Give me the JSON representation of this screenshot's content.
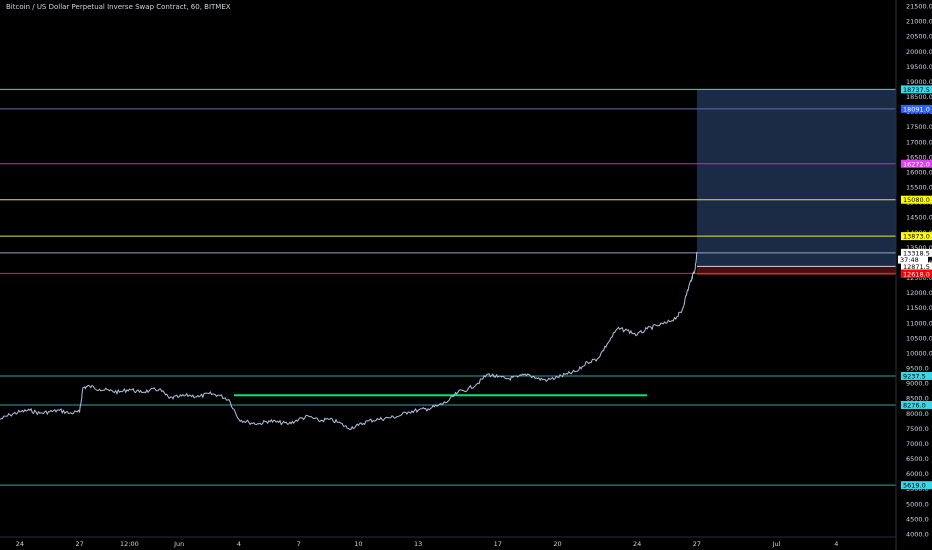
{
  "chart_data": {
    "type": "line",
    "title": "Bitcoin / US Dollar Perpetual Inverse Swap Contract, 60, BITMEX",
    "ylim": [
      3900,
      21700
    ],
    "y_ticks": [
      4000,
      4500,
      5000,
      5500,
      6000,
      6500,
      7000,
      7500,
      8000,
      8500,
      9000,
      9500,
      10000,
      10500,
      11000,
      11500,
      12000,
      12500,
      13000,
      13500,
      14000,
      14500,
      15000,
      15500,
      16000,
      16500,
      17000,
      17500,
      18000,
      18500,
      19000,
      19500,
      20000,
      20500,
      21000,
      21500
    ],
    "x_range": [
      "2019-05-23",
      "2019-07-07"
    ],
    "x_ticks": [
      {
        "date": "2019-05-24",
        "label": "24"
      },
      {
        "date": "2019-05-27",
        "label": "27"
      },
      {
        "date": "2019-05-29T12:00",
        "label": "12:00"
      },
      {
        "date": "2019-06-01",
        "label": "Jun"
      },
      {
        "date": "2019-06-04",
        "label": "4"
      },
      {
        "date": "2019-06-07",
        "label": "7"
      },
      {
        "date": "2019-06-10",
        "label": "10"
      },
      {
        "date": "2019-06-13",
        "label": "13"
      },
      {
        "date": "2019-06-17",
        "label": "17"
      },
      {
        "date": "2019-06-20",
        "label": "20"
      },
      {
        "date": "2019-06-24",
        "label": "24"
      },
      {
        "date": "2019-06-27",
        "label": "27"
      },
      {
        "date": "2019-07-01",
        "label": "Jul"
      },
      {
        "date": "2019-07-04",
        "label": "4"
      }
    ],
    "series": [
      {
        "color": "#b2c2e0",
        "x": [
          "2019-05-23T00:00",
          "2019-05-23T12:00",
          "2019-05-24T00:00",
          "2019-05-24T12:00",
          "2019-05-25T00:00",
          "2019-05-25T12:00",
          "2019-05-26T00:00",
          "2019-05-26T12:00",
          "2019-05-27T00:00",
          "2019-05-27T04:00",
          "2019-05-27T12:00",
          "2019-05-28T00:00",
          "2019-05-28T12:00",
          "2019-05-29T00:00",
          "2019-05-29T12:00",
          "2019-05-30T00:00",
          "2019-05-30T12:00",
          "2019-05-31T00:00",
          "2019-05-31T12:00",
          "2019-06-01T00:00",
          "2019-06-01T12:00",
          "2019-06-02T00:00",
          "2019-06-02T12:00",
          "2019-06-03T00:00",
          "2019-06-03T12:00",
          "2019-06-04T00:00",
          "2019-06-04T12:00",
          "2019-06-05T00:00",
          "2019-06-05T12:00",
          "2019-06-06T00:00",
          "2019-06-06T12:00",
          "2019-06-07T00:00",
          "2019-06-07T12:00",
          "2019-06-08T00:00",
          "2019-06-08T12:00",
          "2019-06-09T00:00",
          "2019-06-09T12:00",
          "2019-06-10T00:00",
          "2019-06-10T12:00",
          "2019-06-11T00:00",
          "2019-06-11T12:00",
          "2019-06-12T00:00",
          "2019-06-12T12:00",
          "2019-06-13T00:00",
          "2019-06-13T12:00",
          "2019-06-14T00:00",
          "2019-06-14T12:00",
          "2019-06-15T00:00",
          "2019-06-15T12:00",
          "2019-06-16T00:00",
          "2019-06-16T12:00",
          "2019-06-17T00:00",
          "2019-06-17T12:00",
          "2019-06-18T00:00",
          "2019-06-18T12:00",
          "2019-06-19T00:00",
          "2019-06-19T12:00",
          "2019-06-20T00:00",
          "2019-06-20T12:00",
          "2019-06-21T00:00",
          "2019-06-21T12:00",
          "2019-06-22T00:00",
          "2019-06-22T12:00",
          "2019-06-23T00:00",
          "2019-06-23T12:00",
          "2019-06-24T00:00",
          "2019-06-24T12:00",
          "2019-06-25T00:00",
          "2019-06-25T12:00",
          "2019-06-26T00:00",
          "2019-06-26T06:00",
          "2019-06-26T12:00",
          "2019-06-26T18:00",
          "2019-06-26T22:00",
          "2019-06-27T00:00"
        ],
        "y": [
          7800,
          7950,
          8050,
          8100,
          8000,
          8050,
          8100,
          8000,
          8050,
          8850,
          8900,
          8800,
          8750,
          8700,
          8800,
          8700,
          8750,
          8800,
          8500,
          8550,
          8600,
          8550,
          8650,
          8600,
          8450,
          7800,
          7700,
          7650,
          7750,
          7700,
          7650,
          7800,
          7900,
          7750,
          7800,
          7700,
          7500,
          7600,
          7750,
          7800,
          7850,
          7900,
          8050,
          8100,
          8150,
          8250,
          8400,
          8700,
          8800,
          9000,
          9300,
          9200,
          9150,
          9200,
          9300,
          9150,
          9100,
          9200,
          9300,
          9400,
          9700,
          9800,
          10300,
          10800,
          10750,
          10600,
          10800,
          10900,
          11000,
          11200,
          11400,
          12000,
          12500,
          12800,
          13350
        ]
      }
    ],
    "levels": [
      {
        "value": 18737.5,
        "label": "18737.5",
        "color": "#3dd6e6",
        "label_bg": "#3dd6e6",
        "label_color": "#000000"
      },
      {
        "value": 18091.0,
        "label": "18091.0",
        "color": "#5a6fb3",
        "label_bg": "#2962ff",
        "label_color": "#ffffff"
      },
      {
        "value": 16272.0,
        "label": "16272.0",
        "color": "#c02ccf",
        "label_bg": "#e040fb",
        "label_color": "#ffffff"
      },
      {
        "value": 15080.0,
        "label": "15080.0",
        "color": "#e6e04a",
        "label_bg": "#ffff00",
        "label_color": "#000000"
      },
      {
        "value": 13873.0,
        "label": "13873.0",
        "color": "#e6e04a",
        "label_bg": "#ffff00",
        "label_color": "#000000"
      },
      {
        "value": 13318.5,
        "label": "13318.5",
        "color": "#8fa3c2",
        "label_bg": "#ffffff",
        "label_color": "#000000"
      },
      {
        "value": 12871.5,
        "label": "12871.5",
        "color": "#d1d4dc",
        "label_bg": "#ffffff",
        "label_color": "#000000"
      },
      {
        "value": 12638.5,
        "label": "12638.5",
        "color": "#d32f2f",
        "label_bg": "#f23645",
        "label_color": "#ffffff"
      },
      {
        "value": 12618.0,
        "label": "12618.0",
        "color": "#d32f2f",
        "label_bg": "#ff0000",
        "label_color": "#ffffff"
      },
      {
        "value": 9237.5,
        "label": "9237.5",
        "color": "#3aa0a8",
        "label_bg": "#3dd6e6",
        "label_color": "#000000"
      },
      {
        "value": 8276.0,
        "label": "8276.0",
        "color": "#3aa0a8",
        "label_bg": "#3dd6e6",
        "label_color": "#000000"
      },
      {
        "value": 5619.0,
        "label": "5619.0",
        "color": "#3aa0a8",
        "label_bg": "#3dd6e6",
        "label_color": "#000000"
      }
    ],
    "support_segment": {
      "value": 8600,
      "from": "2019-06-03T18:00",
      "to": "2019-06-24T12:00",
      "color": "#00e676"
    },
    "position_box": {
      "from": "2019-06-27T00:00",
      "entry": 12871.5,
      "target": 18737.5,
      "stop": 12618.0,
      "profit_color": "#1e2f4d",
      "loss_color": "#4a0f12"
    },
    "countdown_label": "37:48",
    "grid": false
  },
  "colors": {
    "background": "#000000",
    "axis_text": "#d1d4dc",
    "axis_line": "#2a2e39"
  }
}
